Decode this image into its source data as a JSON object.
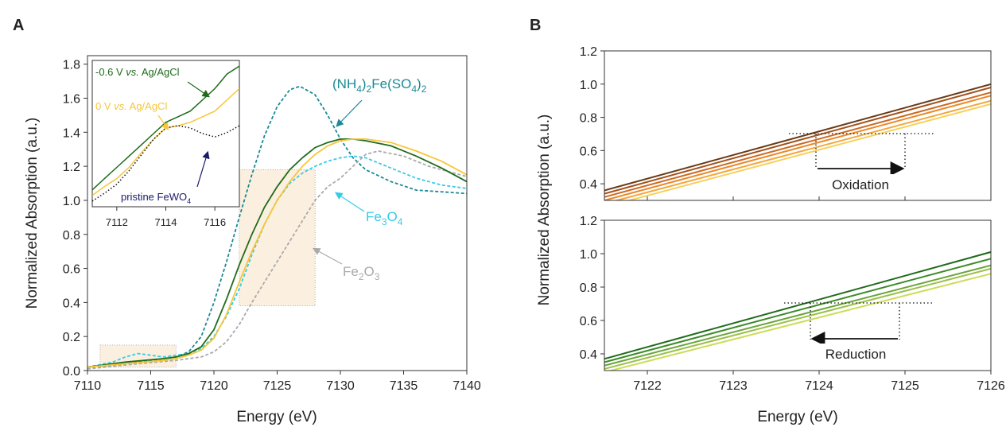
{
  "panel_labels": [
    "A",
    "B"
  ],
  "chart_data": [
    {
      "type": "line",
      "panel": "A",
      "xlabel": "Energy (eV)",
      "ylabel": "Normalized Absorption (a.u.)",
      "xlim": [
        7110,
        7140
      ],
      "ylim": [
        0,
        1.85
      ],
      "xticks": [
        "7110",
        "7115",
        "7120",
        "7125",
        "7130",
        "7135",
        "7140"
      ],
      "yticks": [
        "0.0",
        "0.2",
        "0.4",
        "0.6",
        "0.8",
        "1.0",
        "1.2",
        "1.4",
        "1.6",
        "1.8"
      ],
      "annotations": {
        "nh4": "(NH4)2Fe(SO4)2",
        "fe3o4": "Fe3O4",
        "fe2o3": "Fe2O3"
      },
      "series": [
        {
          "name": "(NH4)2Fe(SO4)2",
          "color": "#1a8a96",
          "style": "dashed",
          "x": [
            7110,
            7112,
            7114,
            7116,
            7117,
            7118,
            7119,
            7120,
            7121,
            7122,
            7123,
            7124,
            7125,
            7126,
            7126.8,
            7128,
            7129,
            7130,
            7131,
            7132,
            7134,
            7136,
            7138,
            7140
          ],
          "y": [
            0.01,
            0.03,
            0.05,
            0.07,
            0.08,
            0.11,
            0.2,
            0.4,
            0.64,
            0.9,
            1.15,
            1.38,
            1.55,
            1.65,
            1.67,
            1.62,
            1.5,
            1.36,
            1.25,
            1.18,
            1.11,
            1.06,
            1.05,
            1.04
          ]
        },
        {
          "name": "Fe3O4",
          "color": "#33ccea",
          "style": "dashed",
          "x": [
            7110,
            7112,
            7113,
            7114,
            7115,
            7116,
            7117,
            7118,
            7119,
            7120,
            7121,
            7122,
            7123,
            7124,
            7125,
            7126,
            7127,
            7128,
            7129,
            7130,
            7131,
            7132,
            7134,
            7136,
            7138,
            7140
          ],
          "y": [
            0.02,
            0.05,
            0.08,
            0.1,
            0.09,
            0.08,
            0.09,
            0.1,
            0.13,
            0.2,
            0.32,
            0.48,
            0.68,
            0.86,
            1.0,
            1.1,
            1.16,
            1.2,
            1.23,
            1.25,
            1.26,
            1.25,
            1.19,
            1.13,
            1.09,
            1.07
          ]
        },
        {
          "name": "Fe2O3",
          "color": "#aaaaaa",
          "style": "dashed",
          "x": [
            7110,
            7114,
            7117,
            7118,
            7119,
            7120,
            7121,
            7122,
            7123,
            7124,
            7125,
            7126,
            7127,
            7128,
            7129,
            7130,
            7131,
            7132,
            7133,
            7135,
            7137,
            7140
          ],
          "y": [
            0.01,
            0.04,
            0.06,
            0.07,
            0.08,
            0.11,
            0.17,
            0.27,
            0.4,
            0.52,
            0.64,
            0.76,
            0.88,
            1.0,
            1.08,
            1.13,
            1.2,
            1.27,
            1.29,
            1.26,
            1.2,
            1.14
          ]
        },
        {
          "name": "-0.6 V vs. Ag/AgCl",
          "color": "#1f6b1a",
          "style": "solid",
          "x": [
            7110,
            7113,
            7116,
            7117,
            7118,
            7119,
            7120,
            7121,
            7122,
            7123,
            7124,
            7125,
            7126,
            7127,
            7128,
            7129,
            7130,
            7131,
            7132,
            7134,
            7136,
            7138,
            7140
          ],
          "y": [
            0.02,
            0.05,
            0.07,
            0.08,
            0.1,
            0.14,
            0.24,
            0.42,
            0.62,
            0.8,
            0.96,
            1.08,
            1.18,
            1.25,
            1.31,
            1.34,
            1.36,
            1.36,
            1.35,
            1.32,
            1.26,
            1.19,
            1.11
          ]
        },
        {
          "name": "0 V vs. Ag/AgCl",
          "color": "#f7c63a",
          "style": "solid",
          "x": [
            7110,
            7113,
            7116,
            7117,
            7118,
            7119,
            7120,
            7121,
            7122,
            7123,
            7124,
            7125,
            7126,
            7127,
            7128,
            7129,
            7130,
            7131,
            7132,
            7134,
            7136,
            7138,
            7140
          ],
          "y": [
            0.02,
            0.04,
            0.06,
            0.07,
            0.09,
            0.12,
            0.19,
            0.33,
            0.52,
            0.7,
            0.86,
            1.0,
            1.11,
            1.2,
            1.27,
            1.32,
            1.35,
            1.36,
            1.36,
            1.34,
            1.29,
            1.23,
            1.15
          ]
        }
      ],
      "highlight_regions": [
        {
          "x": [
            7111,
            7117
          ],
          "y": [
            0.02,
            0.15
          ]
        },
        {
          "x": [
            7122,
            7128
          ],
          "y": [
            0.38,
            1.18
          ]
        }
      ]
    },
    {
      "type": "line",
      "panel": "A-inset",
      "xlim": [
        7111,
        7117
      ],
      "ylim": [
        0.02,
        0.15
      ],
      "xticks": [
        "7112",
        "7114",
        "7116"
      ],
      "annotations": {
        "neg06": "-0.6 V vs. Ag/AgCl",
        "zero": "0 V vs. Ag/AgCl",
        "pristine": "pristine FeWO4"
      },
      "series": [
        {
          "name": "-0.6 V vs. Ag/AgCl",
          "color": "#1f6b1a",
          "style": "solid",
          "x": [
            7111,
            7111.5,
            7112,
            7112.5,
            7113,
            7113.5,
            7114,
            7114.5,
            7115,
            7115.5,
            7116,
            7116.5,
            7117
          ],
          "y": [
            0.035,
            0.045,
            0.055,
            0.065,
            0.075,
            0.085,
            0.095,
            0.1,
            0.105,
            0.115,
            0.125,
            0.138,
            0.145
          ]
        },
        {
          "name": "0 V vs. Ag/AgCl",
          "color": "#f7c63a",
          "style": "solid",
          "x": [
            7111,
            7111.5,
            7112,
            7112.5,
            7113,
            7113.5,
            7114,
            7114.5,
            7115,
            7115.5,
            7116,
            7116.5,
            7117
          ],
          "y": [
            0.03,
            0.038,
            0.045,
            0.055,
            0.068,
            0.08,
            0.09,
            0.092,
            0.095,
            0.1,
            0.105,
            0.115,
            0.125
          ]
        },
        {
          "name": "pristine FeWO4",
          "color": "#111111",
          "style": "dotted",
          "x": [
            7111,
            7111.5,
            7112,
            7112.5,
            7113,
            7113.5,
            7114,
            7114.5,
            7115,
            7115.5,
            7116,
            7116.5,
            7117
          ],
          "y": [
            0.025,
            0.032,
            0.04,
            0.052,
            0.066,
            0.08,
            0.09,
            0.092,
            0.09,
            0.085,
            0.082,
            0.086,
            0.092
          ]
        }
      ]
    },
    {
      "type": "line",
      "panel": "B-top",
      "xlim": [
        7121.5,
        7126
      ],
      "ylim": [
        0.3,
        1.2
      ],
      "yticks": [
        "0.4",
        "0.6",
        "0.8",
        "1.0",
        "1.2"
      ],
      "annotation": "Oxidation",
      "series": [
        {
          "color": "#6b3a12",
          "x": [
            7121.5,
            7126
          ],
          "y": [
            0.36,
            1.0
          ]
        },
        {
          "color": "#a0521e",
          "x": [
            7121.5,
            7126
          ],
          "y": [
            0.34,
            0.98
          ]
        },
        {
          "color": "#cc6a22",
          "x": [
            7121.5,
            7126
          ],
          "y": [
            0.32,
            0.95
          ]
        },
        {
          "color": "#e88a2c",
          "x": [
            7121.5,
            7126
          ],
          "y": [
            0.3,
            0.93
          ]
        },
        {
          "color": "#f2a83c",
          "x": [
            7121.5,
            7126
          ],
          "y": [
            0.28,
            0.9
          ]
        },
        {
          "color": "#f7cf5a",
          "x": [
            7121.5,
            7126
          ],
          "y": [
            0.26,
            0.88
          ]
        }
      ]
    },
    {
      "type": "line",
      "panel": "B-bottom",
      "xlabel": "Energy (eV)",
      "xlim": [
        7121.5,
        7126
      ],
      "ylim": [
        0.3,
        1.2
      ],
      "xticks": [
        "7122",
        "7123",
        "7124",
        "7125",
        "7126"
      ],
      "yticks": [
        "0.4",
        "0.6",
        "0.8",
        "1.0",
        "1.2"
      ],
      "annotation": "Reduction",
      "series": [
        {
          "color": "#1f6b1a",
          "x": [
            7121.5,
            7126
          ],
          "y": [
            0.37,
            1.01
          ]
        },
        {
          "color": "#3c8a28",
          "x": [
            7121.5,
            7126
          ],
          "y": [
            0.35,
            0.97
          ]
        },
        {
          "color": "#6aa53a",
          "x": [
            7121.5,
            7126
          ],
          "y": [
            0.33,
            0.93
          ]
        },
        {
          "color": "#9bbf4a",
          "x": [
            7121.5,
            7126
          ],
          "y": [
            0.31,
            0.91
          ]
        },
        {
          "color": "#cddc5a",
          "x": [
            7121.5,
            7126
          ],
          "y": [
            0.29,
            0.88
          ]
        }
      ]
    }
  ],
  "panel_b_ylabel": "Normalized Absorption (a.u.)",
  "pristine_arrow_color": "#1a1a6a",
  "highlight_fill": "#fbefdf"
}
